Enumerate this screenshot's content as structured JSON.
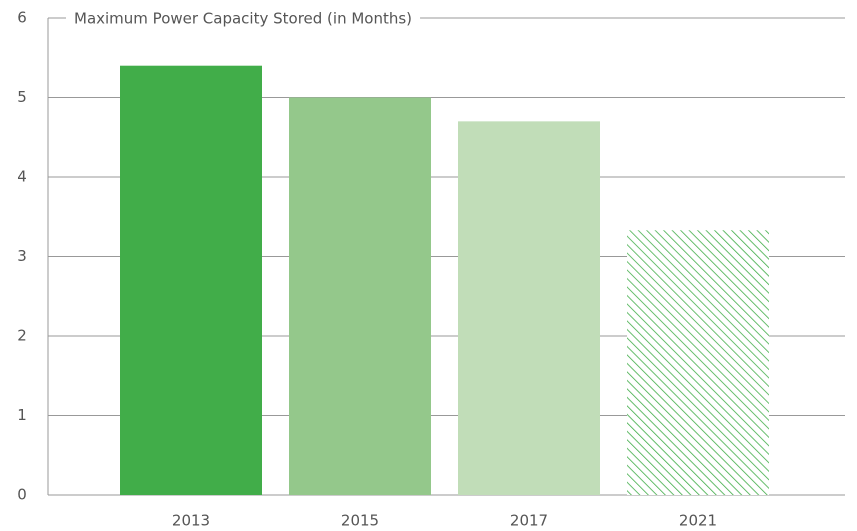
{
  "chart_data": {
    "type": "bar",
    "title": "Maximum Power Capacity Stored (in Months)",
    "categories": [
      "2013",
      "2015",
      "2017",
      "2021"
    ],
    "values": [
      5.4,
      5.0,
      4.7,
      3.33
    ],
    "colors": [
      "#41ad49",
      "#94c88b",
      "#c1ddb8",
      "#41ad49"
    ],
    "hatch": [
      false,
      false,
      false,
      true
    ],
    "ylim": [
      0,
      6
    ],
    "yticks": [
      0,
      1,
      2,
      3,
      4,
      5,
      6
    ],
    "grid": true
  }
}
